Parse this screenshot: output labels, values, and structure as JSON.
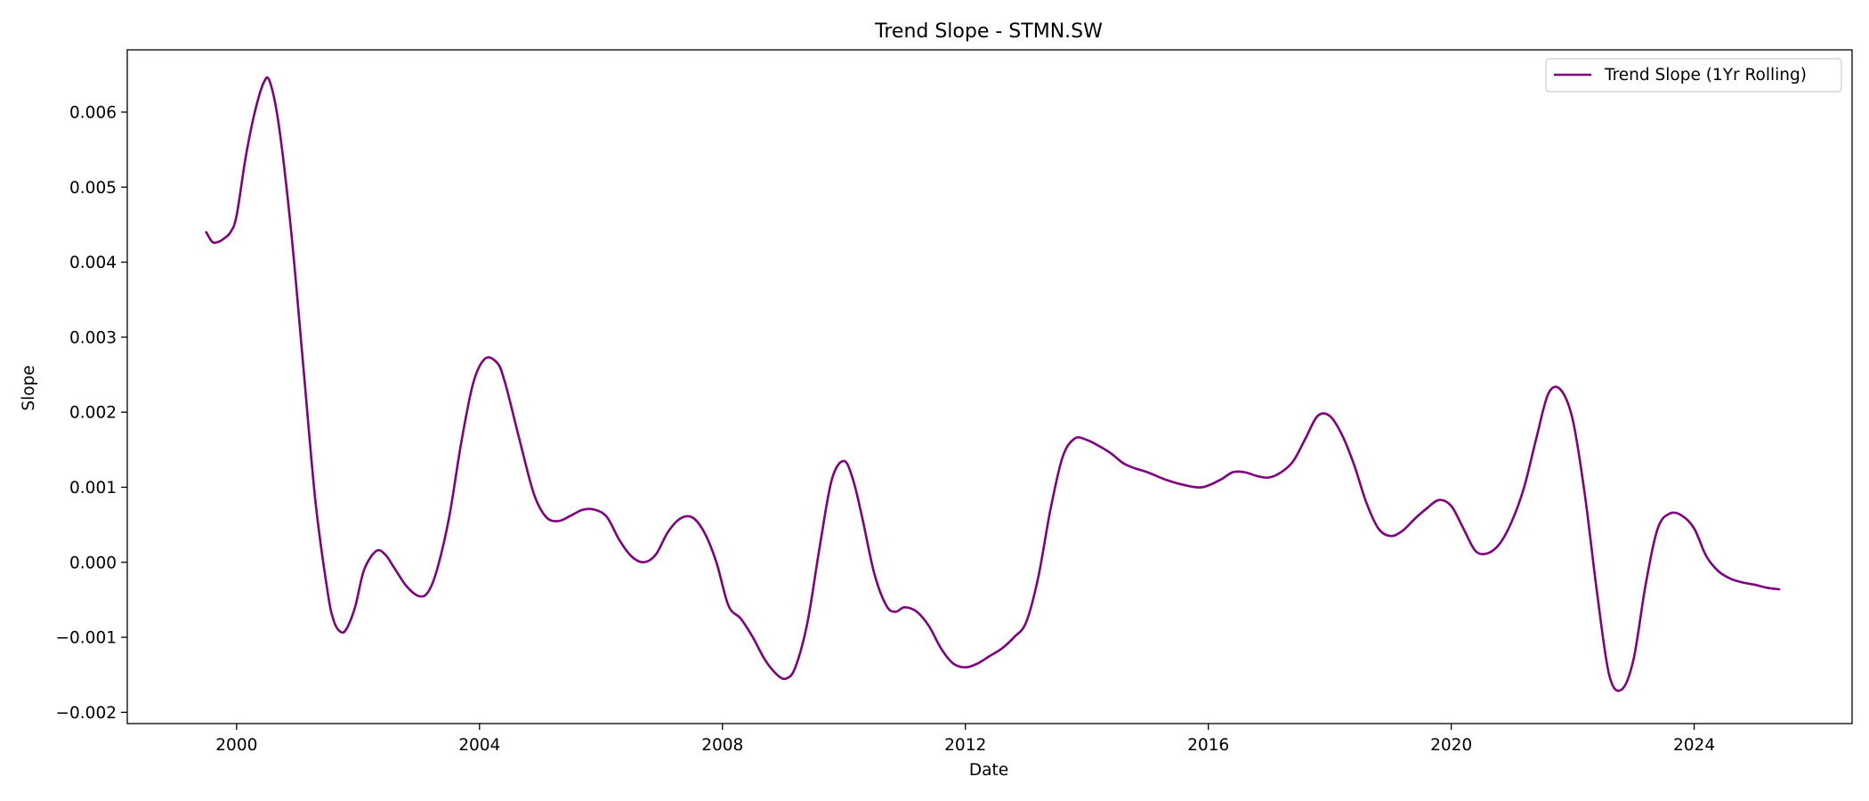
{
  "chart_data": {
    "type": "line",
    "title": "Trend Slope - STMN.SW",
    "xlabel": "Date",
    "ylabel": "Slope",
    "xlim": [
      1998.2,
      2026.6
    ],
    "ylim": [
      -0.00215,
      0.00683
    ],
    "x_ticks": [
      2000,
      2004,
      2008,
      2012,
      2016,
      2020,
      2024
    ],
    "x_tick_labels": [
      "2000",
      "2004",
      "2008",
      "2012",
      "2016",
      "2020",
      "2024"
    ],
    "y_ticks": [
      -0.002,
      -0.001,
      0.0,
      0.001,
      0.002,
      0.003,
      0.004,
      0.005,
      0.006
    ],
    "y_tick_labels": [
      "−0.002",
      "−0.001",
      "0.000",
      "0.001",
      "0.002",
      "0.003",
      "0.004",
      "0.005",
      "0.006"
    ],
    "grid": false,
    "legend_position": "top-right",
    "colors": {
      "series": "#800080",
      "axes": "#000000",
      "background": "#ffffff"
    },
    "series": [
      {
        "name": "Trend Slope (1Yr Rolling)",
        "x": [
          1999.5,
          1999.6,
          1999.7,
          1999.8,
          1999.9,
          2000.0,
          2000.15,
          2000.3,
          2000.45,
          2000.55,
          2000.7,
          2000.9,
          2001.1,
          2001.3,
          2001.5,
          2001.6,
          2001.7,
          2001.8,
          2001.95,
          2002.1,
          2002.3,
          2002.45,
          2002.6,
          2002.8,
          2003.0,
          2003.15,
          2003.3,
          2003.5,
          2003.7,
          2003.9,
          2004.1,
          2004.3,
          2004.4,
          2004.5,
          2004.7,
          2004.9,
          2005.1,
          2005.3,
          2005.5,
          2005.7,
          2005.9,
          2006.1,
          2006.3,
          2006.5,
          2006.7,
          2006.9,
          2007.1,
          2007.3,
          2007.5,
          2007.7,
          2007.9,
          2008.1,
          2008.3,
          2008.5,
          2008.7,
          2008.9,
          2009.05,
          2009.2,
          2009.4,
          2009.6,
          2009.8,
          2010.0,
          2010.15,
          2010.3,
          2010.5,
          2010.7,
          2010.85,
          2011.0,
          2011.2,
          2011.4,
          2011.6,
          2011.8,
          2012.0,
          2012.2,
          2012.4,
          2012.6,
          2012.8,
          2013.0,
          2013.2,
          2013.4,
          2013.6,
          2013.8,
          2014.0,
          2014.2,
          2014.4,
          2014.6,
          2014.8,
          2015.0,
          2015.3,
          2015.6,
          2015.9,
          2016.2,
          2016.4,
          2016.6,
          2016.8,
          2017.0,
          2017.2,
          2017.4,
          2017.6,
          2017.8,
          2018.0,
          2018.2,
          2018.4,
          2018.6,
          2018.8,
          2019.0,
          2019.2,
          2019.4,
          2019.6,
          2019.8,
          2020.0,
          2020.2,
          2020.4,
          2020.6,
          2020.8,
          2021.0,
          2021.2,
          2021.4,
          2021.6,
          2021.8,
          2022.0,
          2022.2,
          2022.4,
          2022.6,
          2022.8,
          2023.0,
          2023.2,
          2023.4,
          2023.6,
          2023.8,
          2024.0,
          2024.2,
          2024.4,
          2024.6,
          2024.8,
          2025.0,
          2025.2,
          2025.4
        ],
        "y": [
          0.0044,
          0.00427,
          0.00427,
          0.00432,
          0.0044,
          0.00462,
          0.0054,
          0.006,
          0.0064,
          0.0064,
          0.0058,
          0.0044,
          0.0026,
          0.0008,
          -0.0004,
          -0.00078,
          -0.00092,
          -0.0009,
          -0.0006,
          -0.0001,
          0.00015,
          0.0001,
          -8e-05,
          -0.00032,
          -0.00045,
          -0.0004,
          -0.0001,
          0.0006,
          0.0016,
          0.0024,
          0.00272,
          0.00265,
          0.00245,
          0.00215,
          0.0015,
          0.0009,
          0.0006,
          0.00055,
          0.00062,
          0.0007,
          0.0007,
          0.0006,
          0.0003,
          8e-05,
          0.0,
          0.0001,
          0.0004,
          0.00058,
          0.0006,
          0.0004,
          0.0,
          -0.00058,
          -0.00075,
          -0.001,
          -0.0013,
          -0.0015,
          -0.00155,
          -0.0014,
          -0.0008,
          0.0002,
          0.0011,
          0.00135,
          0.0011,
          0.0006,
          -0.00015,
          -0.00058,
          -0.00066,
          -0.0006,
          -0.00066,
          -0.00085,
          -0.00115,
          -0.00135,
          -0.0014,
          -0.00135,
          -0.00125,
          -0.00115,
          -0.001,
          -0.0008,
          -0.0002,
          0.0007,
          0.0014,
          0.00165,
          0.00163,
          0.00155,
          0.00145,
          0.00132,
          0.00125,
          0.0012,
          0.0011,
          0.00103,
          0.001,
          0.0011,
          0.0012,
          0.0012,
          0.00115,
          0.00113,
          0.0012,
          0.00135,
          0.00165,
          0.00195,
          0.00195,
          0.0017,
          0.0013,
          0.0008,
          0.00045,
          0.00035,
          0.00042,
          0.00058,
          0.00072,
          0.00083,
          0.00075,
          0.00045,
          0.00015,
          0.00012,
          0.00025,
          0.00055,
          0.001,
          0.00165,
          0.00225,
          0.0023,
          0.0019,
          0.0009,
          -0.0004,
          -0.0015,
          -0.0017,
          -0.0013,
          -0.0003,
          0.00045,
          0.00065,
          0.00062,
          0.00045,
          8e-05,
          -0.00012,
          -0.00022,
          -0.00027,
          -0.0003,
          -0.00034,
          -0.00036
        ]
      }
    ]
  }
}
